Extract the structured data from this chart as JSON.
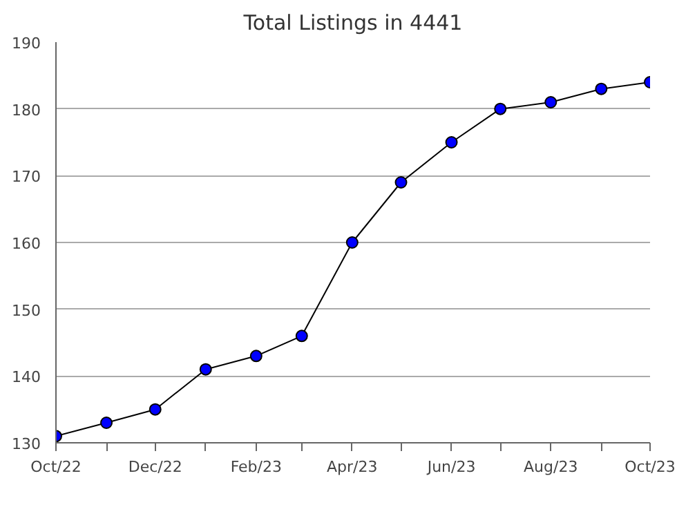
{
  "chart_data": {
    "type": "line",
    "title": "Total Listings in 4441",
    "x": [
      "2022-10",
      "2022-11",
      "2022-12",
      "2023-01",
      "2023-02",
      "2023-03",
      "2023-04",
      "2023-05",
      "2023-06",
      "2023-07",
      "2023-08",
      "2023-09",
      "2023-10"
    ],
    "series": [
      {
        "color": "#0000ff",
        "values": [
          131,
          133,
          135,
          141,
          143,
          146,
          160,
          169,
          175,
          180,
          181,
          183,
          184
        ]
      }
    ],
    "xlim": [
      "2022-10",
      "2023-10"
    ],
    "xticks": [
      {
        "value": "2022-10",
        "label": "Oct/22"
      },
      {
        "value": "2022-11",
        "label": null
      },
      {
        "value": "2022-12",
        "label": "Dec/22"
      },
      {
        "value": "2023-01",
        "label": null
      },
      {
        "value": "2023-02",
        "label": "Feb/23"
      },
      {
        "value": "2023-03",
        "label": null
      },
      {
        "value": "2023-04",
        "label": "Apr/23"
      },
      {
        "value": "2023-05",
        "label": null
      },
      {
        "value": "2023-06",
        "label": "Jun/23"
      },
      {
        "value": "2023-07",
        "label": null
      },
      {
        "value": "2023-08",
        "label": "Aug/23"
      },
      {
        "value": "2023-09",
        "label": null
      },
      {
        "value": "2023-10",
        "label": "Oct/23"
      }
    ],
    "ylim": [
      130,
      190
    ],
    "yticks": [
      130,
      140,
      150,
      160,
      170,
      180,
      190
    ],
    "grid": "y",
    "marker": "circle",
    "line_style": "solid"
  }
}
